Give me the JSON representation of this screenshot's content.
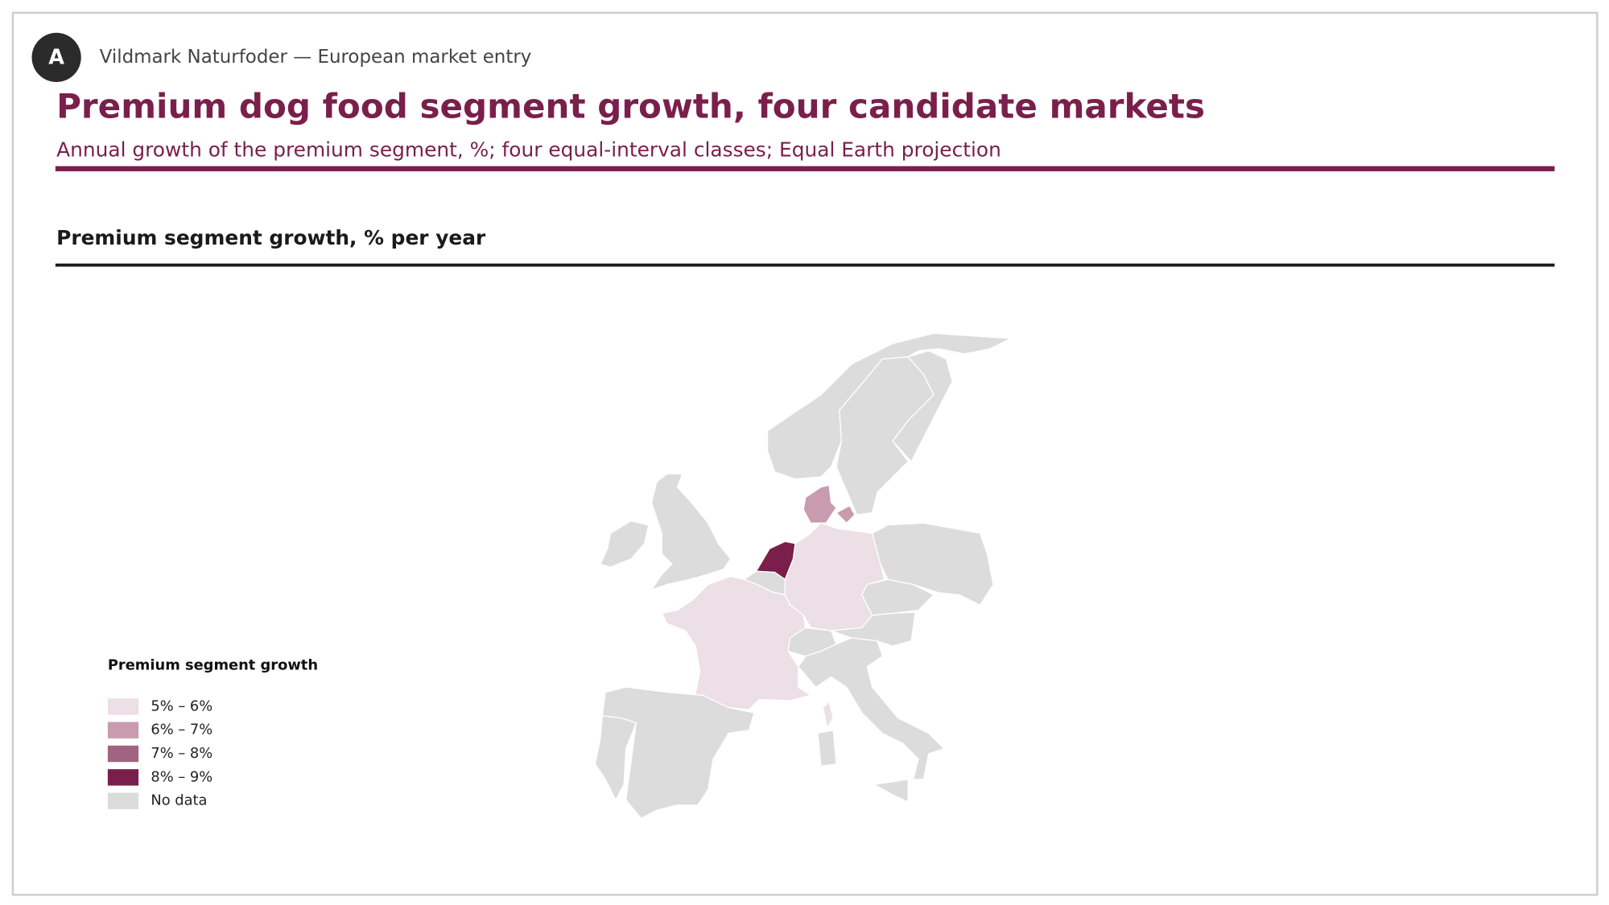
{
  "header": {
    "badge": "A",
    "context": "Vildmark Naturfoder — European market entry",
    "title": "Premium dog food segment growth, four candidate markets",
    "subtitle": "Annual growth of the premium segment, %; four equal-interval classes; Equal Earth projection"
  },
  "map": {
    "title": "Premium segment growth, % per year",
    "legend": {
      "title": "Premium segment growth",
      "classes": [
        {
          "label": "5% – 6%",
          "color": "#ecdfe5"
        },
        {
          "label": "6% – 7%",
          "color": "#c89bae"
        },
        {
          "label": "7% – 8%",
          "color": "#a06380"
        },
        {
          "label": "8% – 9%",
          "color": "#7a1f4b"
        }
      ],
      "no_data": {
        "label": "No data",
        "color": "#dcdcdc"
      }
    }
  }
}
